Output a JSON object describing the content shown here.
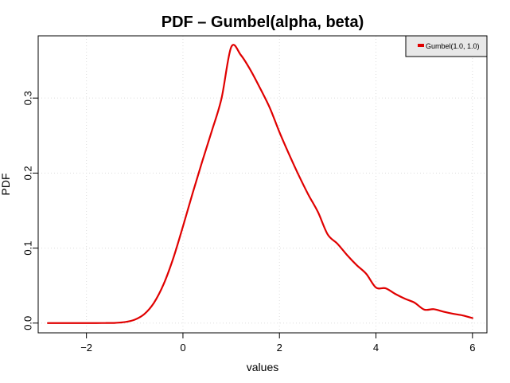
{
  "chart_data": {
    "type": "line",
    "title": "PDF – Gumbel(alpha, beta)",
    "xlabel": "values",
    "ylabel": "PDF",
    "xlim": [
      -3.0,
      6.3
    ],
    "ylim": [
      -0.013,
      0.383
    ],
    "xticks": [
      -2,
      0,
      2,
      4,
      6
    ],
    "xtick_labels": [
      "−2",
      "0",
      "2",
      "4",
      "6"
    ],
    "yticks": [
      0.0,
      0.1,
      0.2,
      0.3
    ],
    "ytick_labels": [
      "0.0",
      "0.1",
      "0.2",
      "0.3"
    ],
    "grid": true,
    "legend_position": "top-right",
    "background": "#ffffff",
    "series": [
      {
        "name": "Gumbel(1.0, 1.0)",
        "color": "#e00000",
        "x": [
          -2.8,
          -2.4,
          -2.0,
          -1.8,
          -1.6,
          -1.4,
          -1.2,
          -1.0,
          -0.8,
          -0.6,
          -0.4,
          -0.2,
          0.0,
          0.2,
          0.4,
          0.6,
          0.8,
          1.0,
          1.2,
          1.4,
          1.6,
          1.8,
          2.0,
          2.2,
          2.4,
          2.6,
          2.8,
          3.0,
          3.2,
          3.4,
          3.6,
          3.8,
          4.0,
          4.2,
          4.4,
          4.6,
          4.8,
          5.0,
          5.2,
          5.4,
          5.6,
          5.8,
          6.0
        ],
        "y": [
          0.0,
          0.0,
          0.0,
          0.0,
          0.0001,
          0.0003,
          0.0014,
          0.0045,
          0.012,
          0.0271,
          0.0519,
          0.0865,
          0.1288,
          0.173,
          0.2156,
          0.2565,
          0.2997,
          0.3679,
          0.3574,
          0.3373,
          0.313,
          0.287,
          0.2546,
          0.225,
          0.197,
          0.1711,
          0.1478,
          0.1182,
          0.1059,
          0.0908,
          0.0773,
          0.0656,
          0.0474,
          0.0464,
          0.0389,
          0.0325,
          0.0272,
          0.018,
          0.0185,
          0.0152,
          0.0124,
          0.0102,
          0.0067
        ]
      }
    ]
  }
}
